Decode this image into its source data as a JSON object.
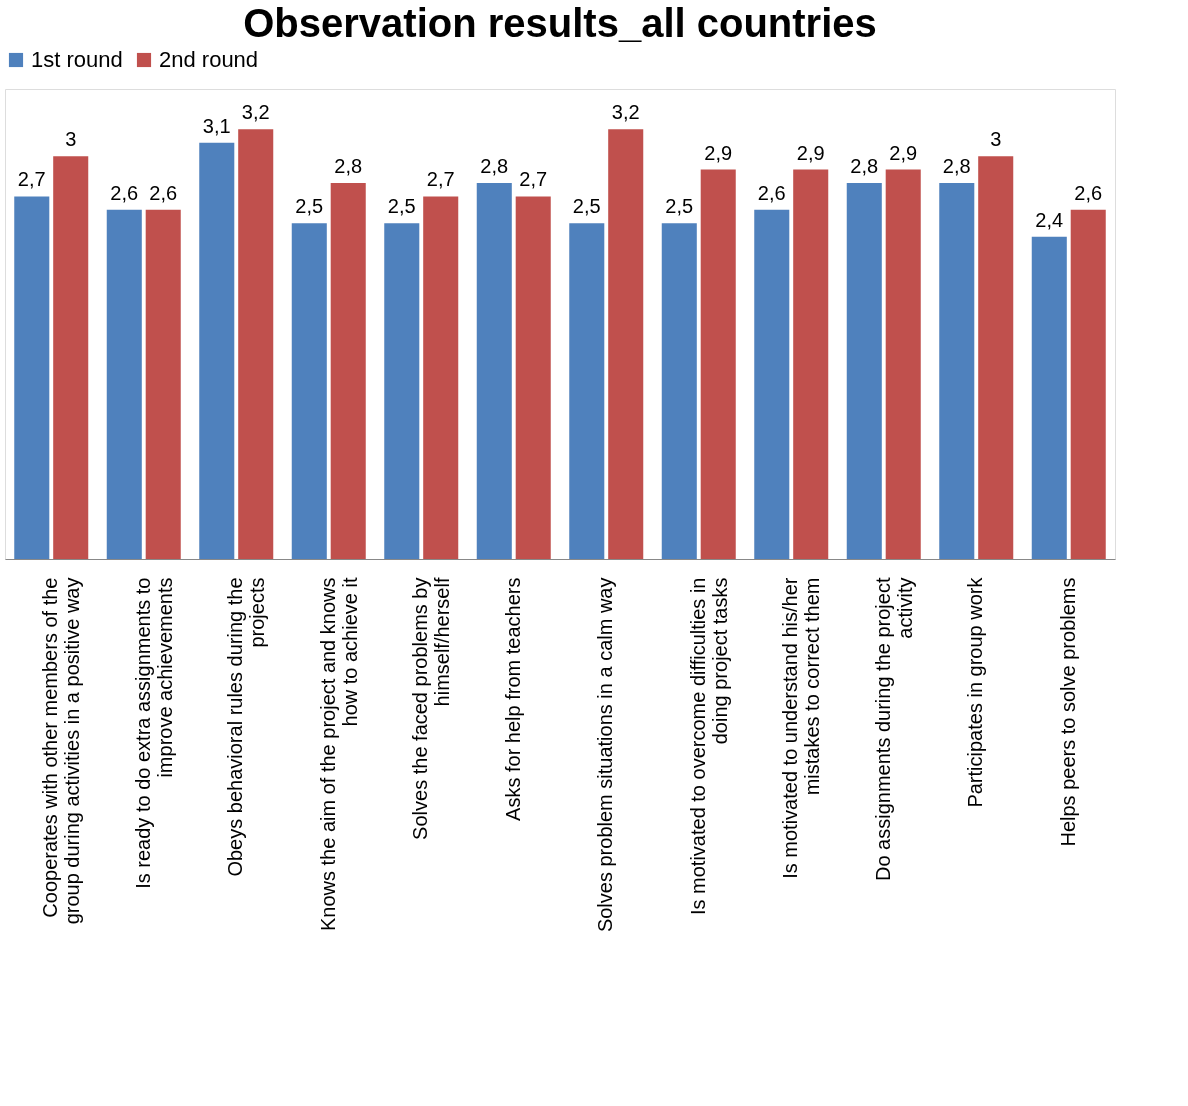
{
  "chart_data": {
    "type": "bar",
    "title": "Observation results_all countries",
    "categories": [
      "Cooperates with other members of the group during activities in a positive way",
      "Is ready to do extra assignments to improve achievements",
      "Obeys behavioral rules during the projects",
      "Knows the aim of the project and knows how to achieve it",
      "Solves the faced problems by himself/herself",
      "Asks for help from teachers",
      "Solves problem situations in a calm way",
      "Is motivated to overcome difficulties in doing project tasks",
      "Is motivated to understand his/her mistakes to correct them",
      "Do assignments during the project activity",
      "Participates in group work",
      "Helps peers to solve problems"
    ],
    "series": [
      {
        "name": "1st round",
        "color": "#4f81bd",
        "values": [
          2.7,
          2.6,
          3.1,
          2.5,
          2.5,
          2.8,
          2.5,
          2.5,
          2.6,
          2.8,
          2.8,
          2.4
        ],
        "value_labels": [
          "2,7",
          "2,6",
          "3,1",
          "2,5",
          "2,5",
          "2,8",
          "2,5",
          "2,5",
          "2,6",
          "2,8",
          "2,8",
          "2,4"
        ]
      },
      {
        "name": "2nd round",
        "color": "#c0504d",
        "values": [
          3.0,
          2.6,
          3.2,
          2.8,
          2.7,
          2.7,
          3.2,
          2.9,
          2.9,
          2.9,
          3.0,
          2.6
        ],
        "value_labels": [
          "3",
          "2,6",
          "3,2",
          "2,8",
          "2,7",
          "2,7",
          "3,2",
          "2,9",
          "2,9",
          "2,9",
          "3",
          "2,6"
        ]
      }
    ],
    "legend": "top",
    "grid": false,
    "tick_labels": "x"
  }
}
